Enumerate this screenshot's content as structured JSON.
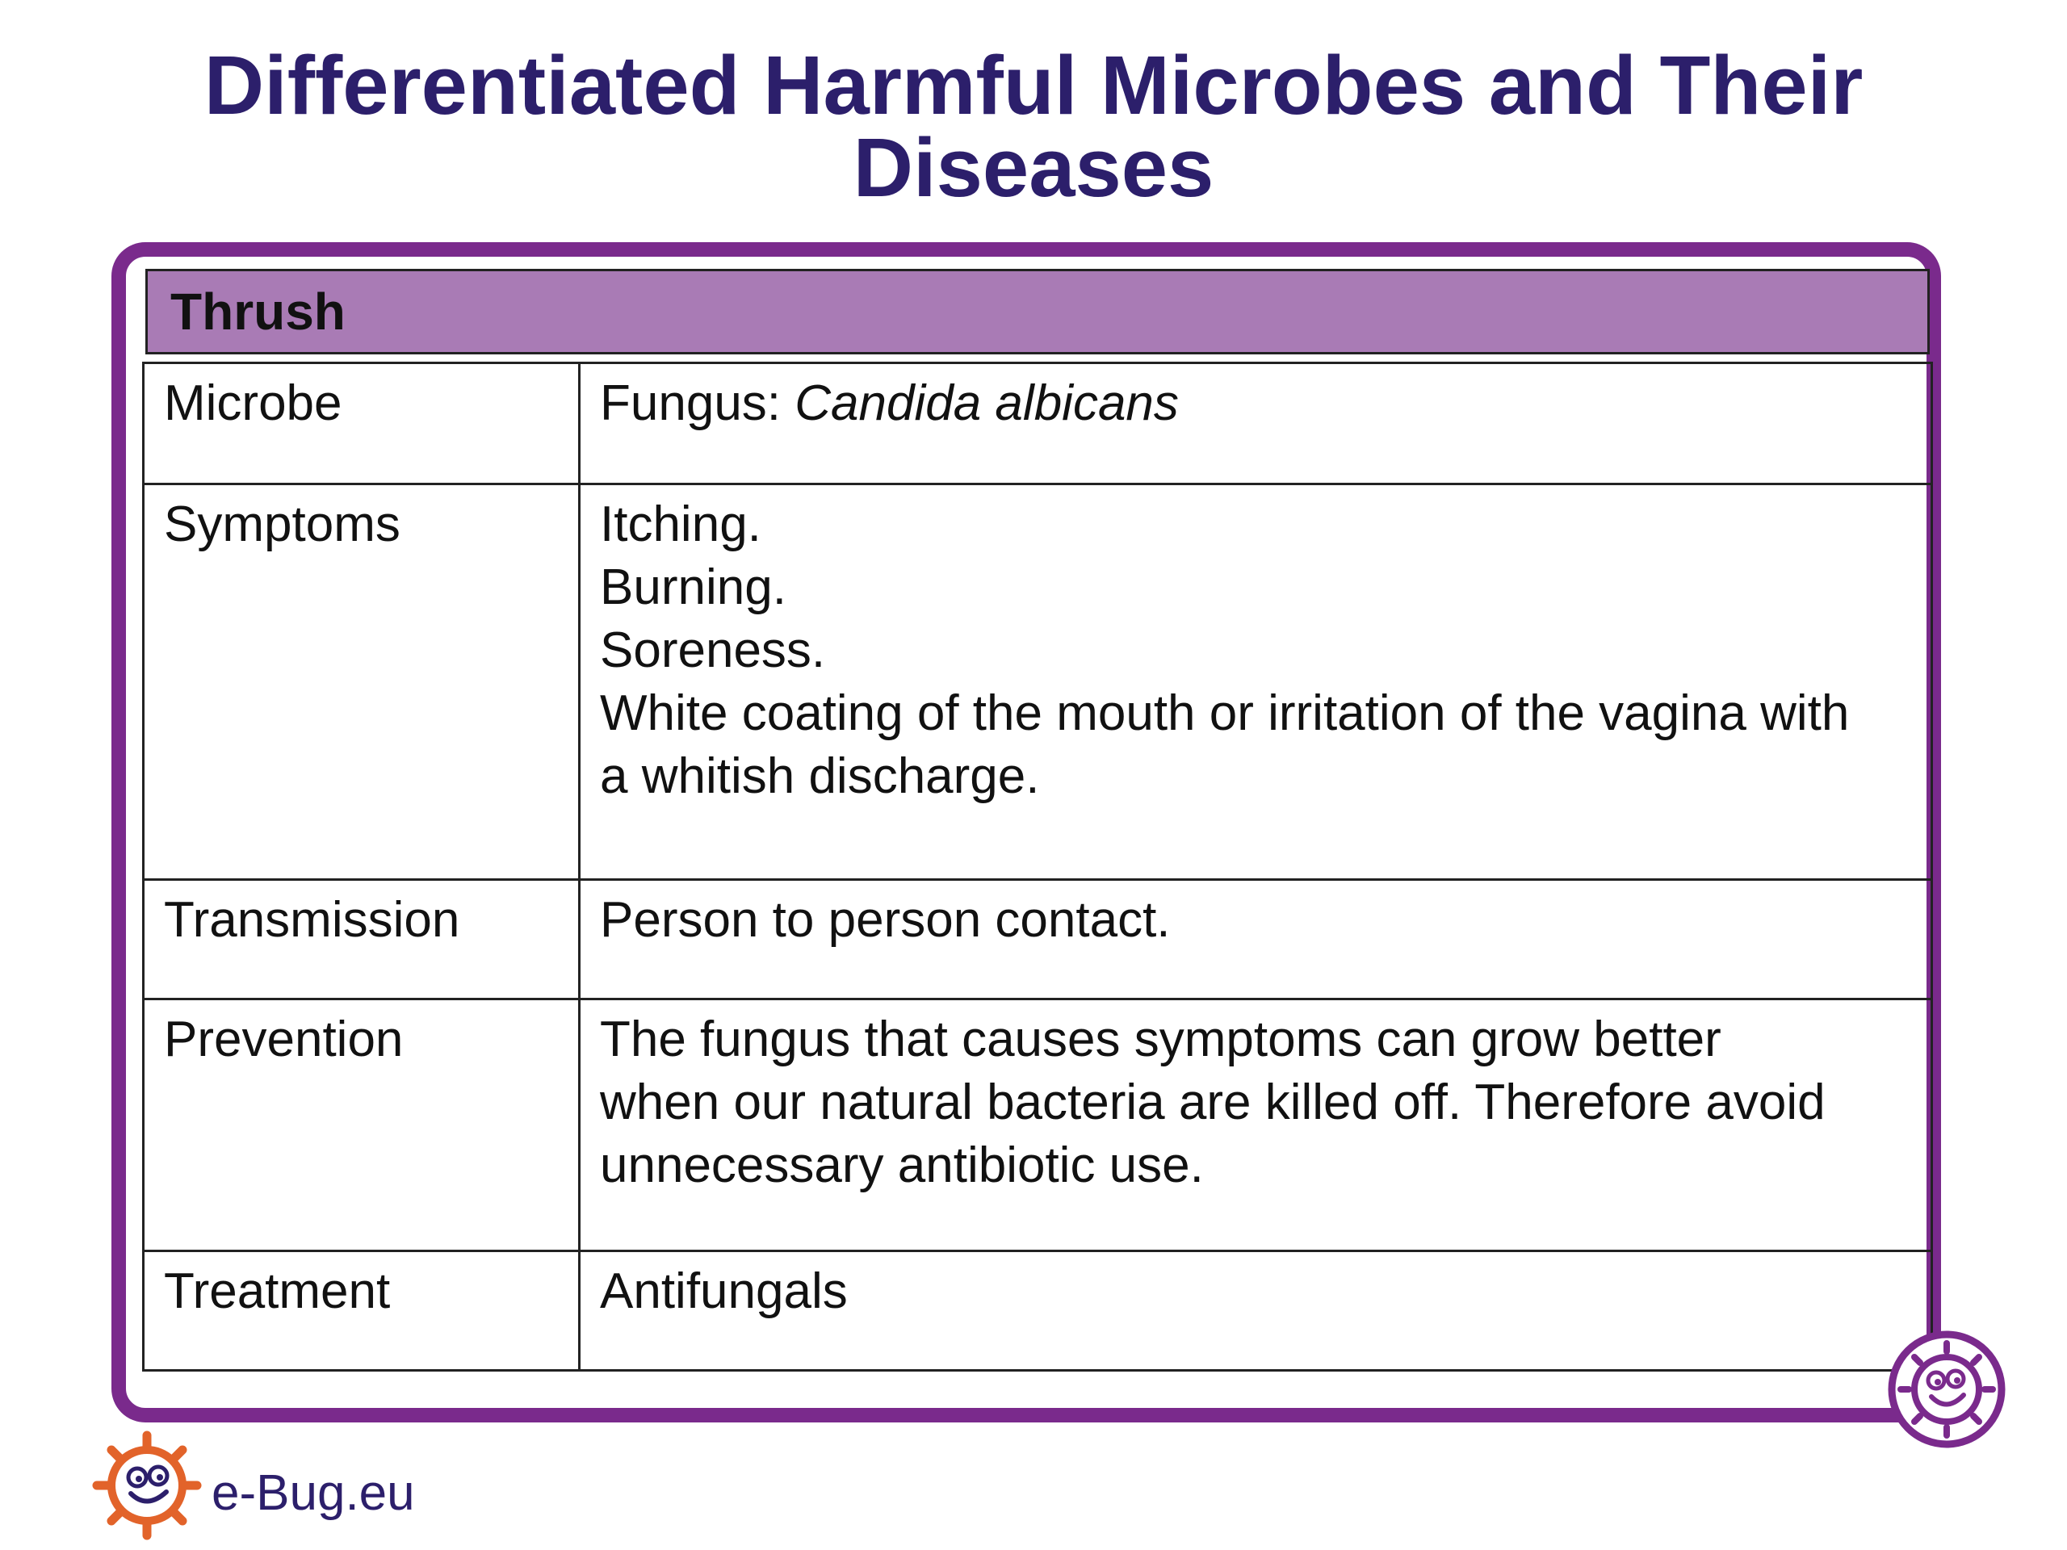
{
  "title": {
    "line1": "Differentiated Harmful Microbes and Their",
    "line2": "Diseases"
  },
  "card": {
    "header": "Thrush",
    "rows": [
      {
        "label": "Microbe",
        "lines": [],
        "prefix": "Fungus: ",
        "italic": "Candida albicans"
      },
      {
        "label": "Symptoms",
        "lines": [
          "Itching.",
          "Burning.",
          "Soreness.",
          "White coating of the mouth or irritation of the vagina with",
          "a whitish discharge."
        ]
      },
      {
        "label": "Transmission",
        "lines": [
          "Person to person contact."
        ]
      },
      {
        "label": "Prevention",
        "lines": [
          "The fungus that causes symptoms can grow better",
          "when our natural bacteria are killed off. Therefore avoid",
          "unnecessary antibiotic use."
        ]
      },
      {
        "label": "Treatment",
        "lines": [
          "Antifungals"
        ]
      }
    ]
  },
  "footer": {
    "logo_text": "e-Bug.eu"
  },
  "colors": {
    "title": "#2c1f6b",
    "frame": "#7a2a8c",
    "header_fill": "#a97bb5",
    "logo_orange": "#e2632a"
  },
  "icons": {
    "corner": "smiling-microbe-icon",
    "logo": "e-bug-logo-icon"
  }
}
